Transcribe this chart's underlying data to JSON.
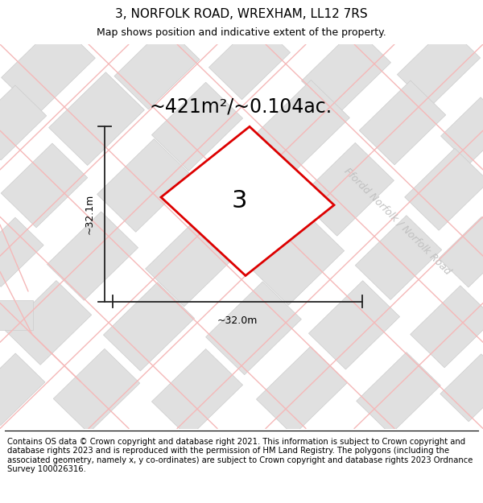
{
  "title": "3, NORFOLK ROAD, WREXHAM, LL12 7RS",
  "subtitle": "Map shows position and indicative extent of the property.",
  "footer": "Contains OS data © Crown copyright and database right 2021. This information is subject to Crown copyright and database rights 2023 and is reproduced with the permission of HM Land Registry. The polygons (including the associated geometry, namely x, y co-ordinates) are subject to Crown copyright and database rights 2023 Ordnance Survey 100026316.",
  "area_label": "~421m²/~0.104ac.",
  "plot_number": "3",
  "dim_horizontal": "~32.0m",
  "dim_vertical": "~32.1m",
  "road_label": "Ffordd Norfolk / Norfolk Road",
  "bg_color": "#ffffff",
  "map_bg": "#ffffff",
  "plot_fill": "#ffffff",
  "plot_edge": "#dd0000",
  "building_fill": "#e0e0e0",
  "building_edge": "#cccccc",
  "road_line_color": "#f5b8b8",
  "dim_line_color": "#222222",
  "title_fontsize": 11,
  "subtitle_fontsize": 9,
  "footer_fontsize": 7.2,
  "area_label_fontsize": 17,
  "plot_number_fontsize": 22,
  "dim_fontsize": 9,
  "road_label_fontsize": 9
}
